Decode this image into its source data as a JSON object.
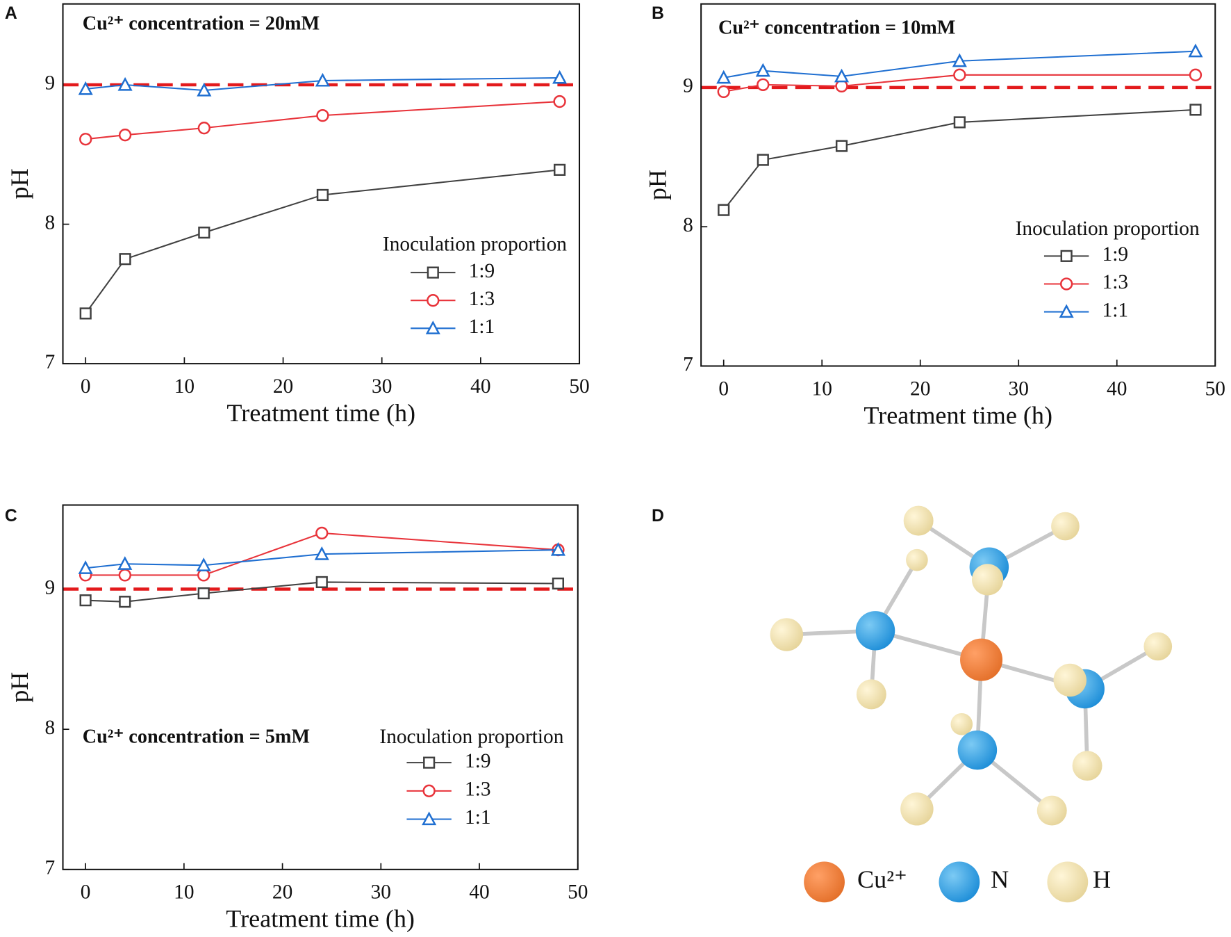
{
  "chart_data": [
    {
      "type": "line",
      "panel_label": "A",
      "annotation": "Cu²⁺ concentration = 20mM",
      "xlabel": "Treatment time (h)",
      "ylabel": "pH",
      "x": [
        0,
        4,
        12,
        24,
        48
      ],
      "xlim": [
        -2.3,
        50
      ],
      "xticks": [
        0,
        10,
        20,
        30,
        40,
        50
      ],
      "ylim": [
        7,
        9.58
      ],
      "yticks": [
        7,
        8,
        9
      ],
      "ref_line": 9,
      "ref_color": "#e31a1c",
      "legend_title": "Inoculation proportion",
      "series": [
        {
          "name": "1:9",
          "color": "#404040",
          "marker": "square",
          "values": [
            7.36,
            7.75,
            7.94,
            8.21,
            8.39
          ]
        },
        {
          "name": "1:3",
          "color": "#e8333a",
          "marker": "circle",
          "values": [
            8.61,
            8.64,
            8.69,
            8.78,
            8.88
          ]
        },
        {
          "name": "1:1",
          "color": "#1f6fd1",
          "marker": "triangle",
          "values": [
            8.97,
            9.0,
            8.96,
            9.03,
            9.05
          ]
        }
      ]
    },
    {
      "type": "line",
      "panel_label": "B",
      "annotation": "Cu²⁺ concentration = 10mM",
      "xlabel": "Treatment time (h)",
      "ylabel": "pH",
      "x": [
        0,
        4,
        12,
        24,
        48
      ],
      "xlim": [
        -2.3,
        50
      ],
      "xticks": [
        0,
        10,
        20,
        30,
        40,
        50
      ],
      "ylim": [
        7,
        9.6
      ],
      "yticks": [
        7,
        8,
        9
      ],
      "ref_line": 9,
      "ref_color": "#e31a1c",
      "legend_title": "Inoculation proportion",
      "series": [
        {
          "name": "1:9",
          "color": "#404040",
          "marker": "square",
          "values": [
            8.12,
            8.48,
            8.58,
            8.75,
            8.84
          ]
        },
        {
          "name": "1:3",
          "color": "#e8333a",
          "marker": "circle",
          "values": [
            8.97,
            9.02,
            9.01,
            9.09,
            9.09
          ]
        },
        {
          "name": "1:1",
          "color": "#1f6fd1",
          "marker": "triangle",
          "values": [
            9.07,
            9.12,
            9.08,
            9.19,
            9.26
          ]
        }
      ]
    },
    {
      "type": "line",
      "panel_label": "C",
      "annotation": "Cu²⁺ concentration = 5mM",
      "xlabel": "Treatment time (h)",
      "ylabel": "pH",
      "x": [
        0,
        4,
        12,
        24,
        48
      ],
      "xlim": [
        -2.3,
        50
      ],
      "xticks": [
        0,
        10,
        20,
        30,
        40,
        50
      ],
      "ylim": [
        7,
        9.6
      ],
      "yticks": [
        7,
        8,
        9
      ],
      "ref_line": 9,
      "ref_color": "#e31a1c",
      "legend_title": "Inoculation proportion",
      "series": [
        {
          "name": "1:9",
          "color": "#404040",
          "marker": "square",
          "values": [
            8.92,
            8.91,
            8.97,
            9.05,
            9.04
          ]
        },
        {
          "name": "1:3",
          "color": "#e8333a",
          "marker": "circle",
          "values": [
            9.1,
            9.1,
            9.1,
            9.4,
            9.28
          ]
        },
        {
          "name": "1:1",
          "color": "#1f6fd1",
          "marker": "triangle",
          "values": [
            9.15,
            9.18,
            9.17,
            9.25,
            9.28
          ]
        }
      ]
    }
  ],
  "diagram": {
    "panel_label": "D",
    "legend": [
      "Cu²⁺",
      "N",
      "H"
    ]
  }
}
